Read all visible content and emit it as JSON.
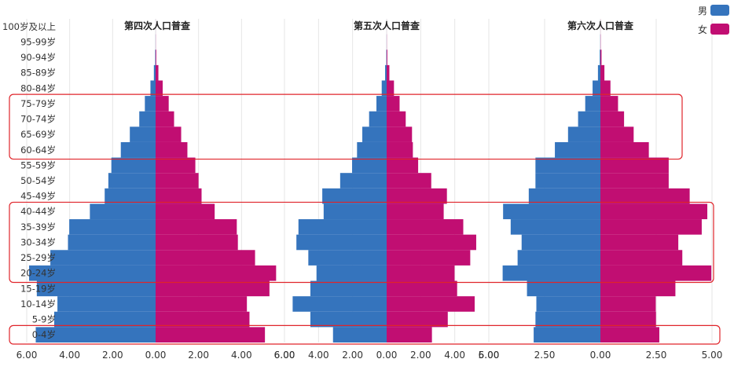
{
  "colors": {
    "male": "#3574BD",
    "female": "#C10E72",
    "highlight": "#E0252B",
    "grid": "#E6E6E6"
  },
  "legend": [
    {
      "name": "男",
      "color": "#3574BD"
    },
    {
      "name": "女",
      "color": "#C10E72"
    }
  ],
  "chart_data": {
    "type": "bar",
    "orientation": "horizontal-population-pyramid",
    "categories": [
      "0-4岁",
      "5-9岁",
      "10-14岁",
      "15-19岁",
      "20-24岁",
      "25-29岁",
      "30-34岁",
      "35-39岁",
      "40-44岁",
      "45-49岁",
      "50-54岁",
      "55-59岁",
      "60-64岁",
      "65-69岁",
      "70-74岁",
      "75-79岁",
      "80-84岁",
      "85-89岁",
      "90-94岁",
      "95-99岁",
      "100岁及以上"
    ],
    "highlight_groups": [
      [
        0,
        0
      ],
      [
        4,
        8
      ],
      [
        12,
        15
      ]
    ],
    "panels": [
      {
        "title": "第四次人口普查",
        "xlim": [
          -6,
          6
        ],
        "ticks": [
          "6.00",
          "4.00",
          "2.00",
          "0.00",
          "2.00",
          "4.00",
          "6.00"
        ],
        "series": [
          {
            "name": "男",
            "values": [
              5.58,
              4.72,
              4.57,
              5.53,
              5.89,
              4.9,
              4.08,
              4.02,
              3.06,
              2.37,
              2.2,
              2.06,
              1.62,
              1.2,
              0.76,
              0.5,
              0.24,
              0.08,
              0.02,
              0.004,
              0.001
            ]
          },
          {
            "name": "女",
            "values": [
              5.09,
              4.37,
              4.25,
              5.3,
              5.61,
              4.63,
              3.83,
              3.78,
              2.75,
              2.14,
              2.0,
              1.85,
              1.48,
              1.19,
              0.86,
              0.61,
              0.33,
              0.13,
              0.03,
              0.006,
              0.002
            ]
          }
        ]
      },
      {
        "title": "第五次人口普查",
        "xlim": [
          -6,
          6
        ],
        "ticks": [
          "6.00",
          "4.00",
          "2.00",
          "0.00",
          "2.00",
          "4.00",
          "6.00"
        ],
        "series": [
          {
            "name": "男",
            "values": [
              3.15,
              4.48,
              5.52,
              4.48,
              4.12,
              4.6,
              5.3,
              5.18,
              3.7,
              3.78,
              2.73,
              2.03,
              1.74,
              1.43,
              1.03,
              0.6,
              0.29,
              0.09,
              0.02,
              0.004,
              0.001
            ]
          },
          {
            "name": "女",
            "values": [
              2.66,
              3.59,
              5.17,
              4.14,
              3.99,
              4.91,
              5.26,
              4.5,
              3.35,
              3.54,
              2.62,
              1.85,
              1.54,
              1.49,
              1.12,
              0.76,
              0.43,
              0.16,
              0.04,
              0.008,
              0.002
            ]
          }
        ]
      },
      {
        "title": "第六次人口普查",
        "xlim": [
          -5,
          5
        ],
        "ticks": [
          "5.00",
          "2.50",
          "0.00",
          "2.50",
          "5.00"
        ],
        "series": [
          {
            "name": "男",
            "values": [
              2.99,
              2.91,
              2.87,
              3.29,
              4.38,
              3.71,
              3.53,
              4.02,
              4.36,
              3.21,
              2.91,
              2.91,
              2.04,
              1.45,
              1.0,
              0.68,
              0.35,
              0.11,
              0.03,
              0.006,
              0.001
            ]
          },
          {
            "name": "女",
            "values": [
              2.64,
              2.49,
              2.48,
              3.36,
              4.97,
              3.67,
              3.49,
              4.54,
              4.79,
              4.0,
              3.06,
              3.06,
              2.17,
              1.49,
              1.06,
              0.79,
              0.45,
              0.18,
              0.05,
              0.01,
              0.003
            ]
          }
        ]
      }
    ]
  }
}
